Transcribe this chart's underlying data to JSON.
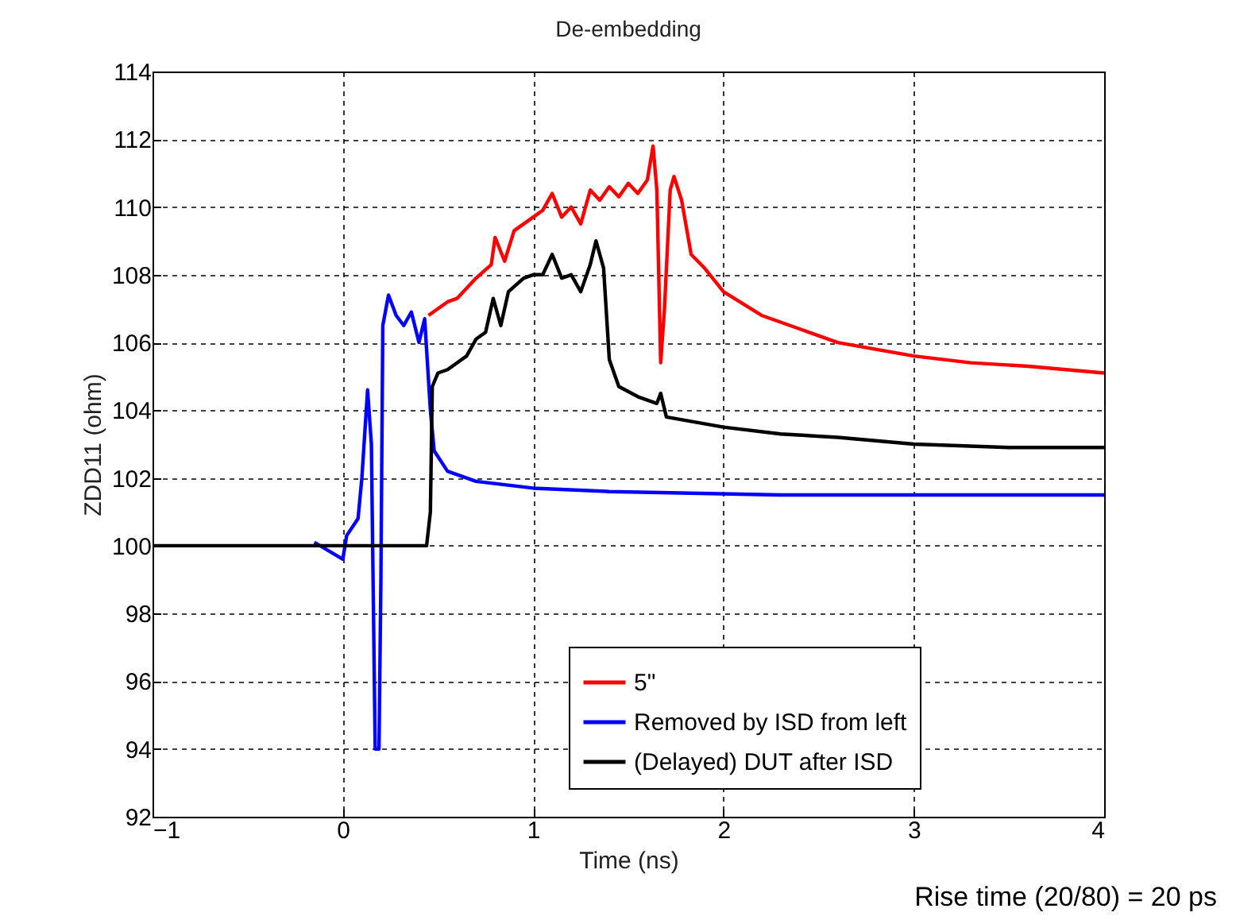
{
  "chart_data": {
    "type": "line",
    "title": "De-embedding",
    "xlabel": "Time (ns)",
    "ylabel": "ZDD11 (ohm)",
    "xlim": [
      -1,
      4
    ],
    "ylim": [
      92,
      114
    ],
    "xticks": [
      -1,
      0,
      1,
      2,
      3,
      4
    ],
    "yticks": [
      92,
      94,
      96,
      98,
      100,
      102,
      104,
      106,
      108,
      110,
      112,
      114
    ],
    "grid": true,
    "legend": "bottom right",
    "annotations": [
      "Rise time (20/80) = 20 ps"
    ],
    "series": [
      {
        "name": "5\"",
        "color": "#ff0000",
        "x": [
          0.45,
          0.55,
          0.6,
          0.7,
          0.78,
          0.8,
          0.85,
          0.9,
          1.0,
          1.05,
          1.1,
          1.15,
          1.2,
          1.25,
          1.3,
          1.35,
          1.4,
          1.45,
          1.5,
          1.55,
          1.6,
          1.63,
          1.65,
          1.67,
          1.69,
          1.72,
          1.74,
          1.78,
          1.83,
          1.9,
          2.0,
          2.2,
          2.4,
          2.6,
          2.8,
          3.0,
          3.3,
          3.6,
          4.0
        ],
        "values": [
          106.8,
          107.2,
          107.3,
          107.9,
          108.3,
          109.1,
          108.4,
          109.3,
          109.7,
          109.9,
          110.4,
          109.7,
          110.0,
          109.5,
          110.5,
          110.2,
          110.6,
          110.3,
          110.7,
          110.4,
          110.8,
          111.8,
          110.5,
          105.4,
          107,
          110.5,
          110.9,
          110.2,
          108.6,
          108.2,
          107.5,
          106.8,
          106.4,
          106.0,
          105.8,
          105.6,
          105.4,
          105.3,
          105.1
        ]
      },
      {
        "name": "Removed by ISD from left",
        "color": "#0000ff",
        "x": [
          -0.15,
          0,
          0.02,
          0.08,
          0.1,
          0.13,
          0.15,
          0.17,
          0.19,
          0.2,
          0.21,
          0.24,
          0.28,
          0.32,
          0.36,
          0.4,
          0.43,
          0.46,
          0.48,
          0.55,
          0.7,
          1.0,
          1.4,
          2.3,
          4.0
        ],
        "values": [
          100.1,
          99.6,
          100.3,
          100.8,
          102,
          104.6,
          103,
          94,
          94,
          99,
          106.5,
          107.4,
          106.8,
          106.5,
          106.9,
          106,
          106.7,
          104,
          102.8,
          102.2,
          101.9,
          101.7,
          101.6,
          101.5,
          101.5
        ]
      },
      {
        "name": "(Delayed) DUT after ISD",
        "color": "#000000",
        "x": [
          -1,
          0.44,
          0.46,
          0.47,
          0.5,
          0.55,
          0.6,
          0.65,
          0.7,
          0.75,
          0.79,
          0.83,
          0.87,
          0.95,
          1.0,
          1.05,
          1.1,
          1.15,
          1.2,
          1.25,
          1.3,
          1.33,
          1.37,
          1.4,
          1.45,
          1.55,
          1.65,
          1.67,
          1.7,
          1.8,
          2.0,
          2.3,
          2.6,
          3.0,
          3.5,
          4.0
        ],
        "values": [
          100,
          100,
          101,
          104.7,
          105.1,
          105.2,
          105.4,
          105.6,
          106.1,
          106.3,
          107.3,
          106.5,
          107.5,
          107.9,
          108.0,
          108.0,
          108.6,
          107.9,
          108.0,
          107.5,
          108.3,
          109.0,
          108.2,
          105.5,
          104.7,
          104.4,
          104.2,
          104.5,
          103.8,
          103.7,
          103.5,
          103.3,
          103.2,
          103.0,
          102.9,
          102.9
        ]
      }
    ]
  }
}
